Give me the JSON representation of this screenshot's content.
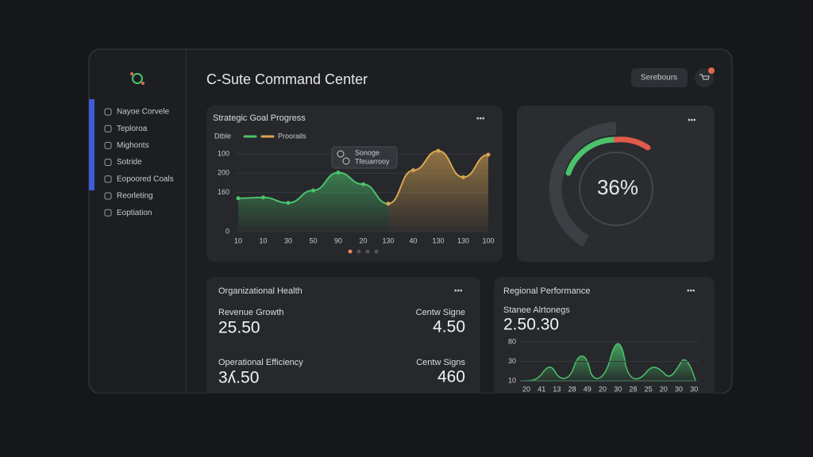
{
  "sidebar": {
    "items": [
      "Nayoe Corvele",
      "Teploroa",
      "Mighonts",
      "Sotride",
      "Eopoored Coals",
      "Reorleting",
      "Eoptiation"
    ]
  },
  "header": {
    "title": "C-Sute Command Center",
    "button": "Serebours"
  },
  "goal_chart": {
    "type": "line",
    "title": "Strategic Goal Progress",
    "legend_label": "Dtble",
    "tooltip": [
      "Sonoge",
      "Tfeuarrooy"
    ],
    "ylabels": [
      "100",
      "200",
      "160",
      "0"
    ],
    "categories": [
      "10",
      "10",
      "30",
      "50",
      "90",
      "20",
      "130",
      "40",
      "130",
      "130",
      "100"
    ],
    "ylim": [
      0,
      100
    ],
    "series": [
      {
        "color": "#4cc26a",
        "values": [
          43,
          44,
          37,
          53,
          76,
          61,
          36,
          null,
          null,
          null,
          null
        ]
      },
      {
        "name": "Proorails",
        "color": "#d9a552",
        "values": [
          null,
          null,
          null,
          null,
          null,
          null,
          36,
          79,
          104,
          70,
          99
        ]
      }
    ]
  },
  "gauge": {
    "label": "36%"
  },
  "org_health": {
    "title": "Organizational Health",
    "metrics": [
      {
        "label": "Revenue Growth",
        "value": "25.50"
      },
      {
        "label": "Centw Signe",
        "value": "4.50"
      },
      {
        "label": "Operational Efficiency",
        "value": "3ʎ.50"
      },
      {
        "label": "Centw Signs",
        "value": "460"
      }
    ]
  },
  "regional": {
    "title": "Regional Performance",
    "subtitle": "Stanee Alrtonegs",
    "value": "2.50.30",
    "ylabels": [
      "80",
      "30",
      "10"
    ],
    "xlabels": [
      "20",
      "41",
      "13",
      "28",
      "49",
      "20",
      "30",
      "28",
      "25",
      "20",
      "30",
      "30"
    ]
  }
}
